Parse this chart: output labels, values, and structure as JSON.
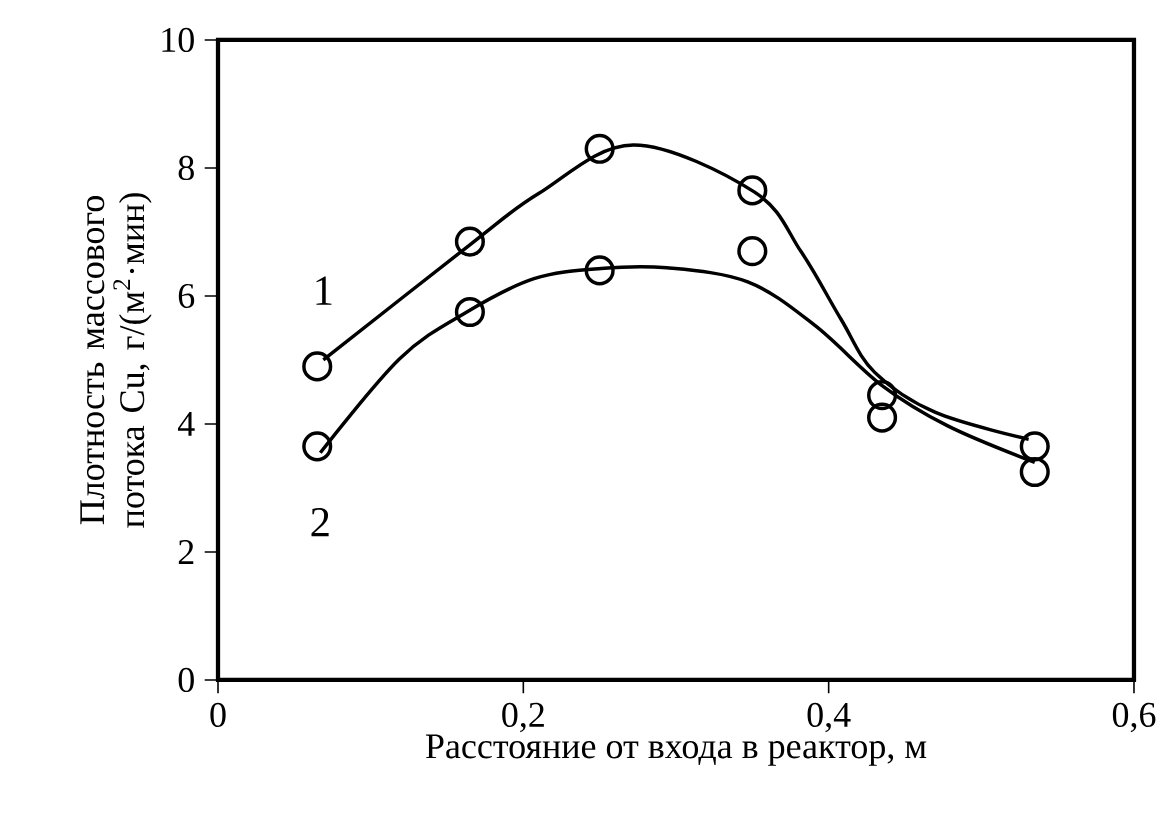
{
  "chart_data": {
    "type": "scatter",
    "xlabel": "Расстояние от входа в реактор, м",
    "ylabel": "Плотность массового потока Cu, г/(м$^{2}$·мин)",
    "xlim": [
      0,
      0.6
    ],
    "ylim": [
      0,
      10
    ],
    "xticks": [
      0,
      {
        "value": 0.2,
        "label": "0,2"
      },
      {
        "value": 0.4,
        "label": "0,4"
      },
      {
        "value": 0.6,
        "label": "0,6"
      }
    ],
    "yticks": [
      0,
      2,
      4,
      6,
      8,
      10
    ],
    "grid": false,
    "legend": "left",
    "series": [
      {
        "color": "#000000",
        "marker": "circle",
        "x": [
          0.065,
          0.165,
          0.25,
          0.35,
          0.435,
          0.535
        ],
        "values": [
          4.9,
          6.85,
          8.3,
          7.65,
          4.45,
          3.65
        ]
      },
      {
        "color": "#000000",
        "marker": "circle",
        "x": [
          0.065,
          0.165,
          0.25,
          0.35,
          0.435,
          0.535
        ],
        "values": [
          3.65,
          5.75,
          6.4,
          6.7,
          4.1,
          3.25
        ]
      },
      {
        "type": "line",
        "name": "1",
        "color": "#000000",
        "marker": "none",
        "line_style": "solid",
        "x": [
          0.069,
          0.165,
          0.21,
          0.272,
          0.351,
          0.382,
          0.408,
          0.43,
          0.47,
          0.531
        ],
        "values": [
          5.0,
          6.8,
          7.6,
          8.36,
          7.63,
          6.69,
          5.64,
          4.81,
          4.18,
          3.76
        ]
      },
      {
        "type": "line",
        "name": "2",
        "color": "#000000",
        "marker": "none",
        "line_style": "solid",
        "x": [
          0.067,
          0.119,
          0.163,
          0.207,
          0.251,
          0.294,
          0.347,
          0.391,
          0.435,
          0.478,
          0.535
        ],
        "values": [
          3.55,
          5.02,
          5.75,
          6.27,
          6.43,
          6.44,
          6.22,
          5.54,
          4.6,
          3.97,
          3.4
        ]
      }
    ]
  }
}
